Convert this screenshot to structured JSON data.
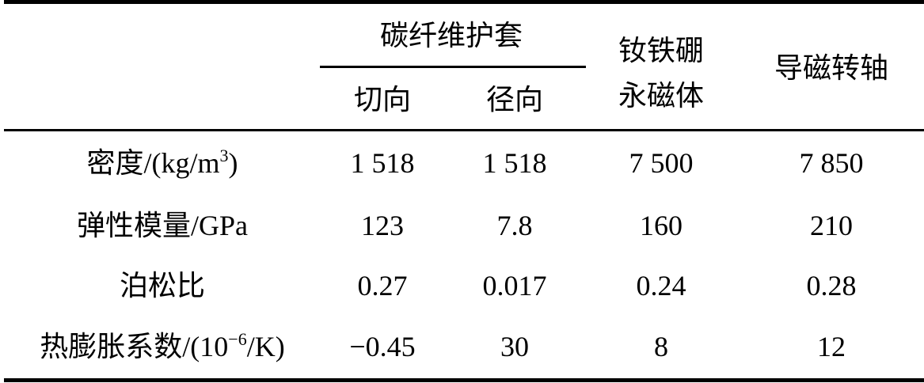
{
  "header": {
    "group": "碳纤维护套",
    "sub": [
      "切向",
      "径向"
    ],
    "col3_line1": "钕铁硼",
    "col3_line2": "永磁体",
    "col4": "导磁转轴"
  },
  "rows": [
    {
      "label": "密度/(kg/m",
      "sup": "3",
      "label_tail": ")",
      "values": [
        "1 518",
        "1 518",
        "7 500",
        "7 850"
      ]
    },
    {
      "label": "弹性模量/GPa",
      "sup": "",
      "label_tail": "",
      "values": [
        "123",
        "7.8",
        "160",
        "210"
      ]
    },
    {
      "label": "泊松比",
      "sup": "",
      "label_tail": "",
      "values": [
        "0.27",
        "0.017",
        "0.24",
        "0.28"
      ]
    },
    {
      "label": "热膨胀系数/(10",
      "sup": "−6",
      "label_tail": "/K)",
      "values": [
        "−0.45",
        "30",
        "8",
        "12"
      ]
    }
  ]
}
